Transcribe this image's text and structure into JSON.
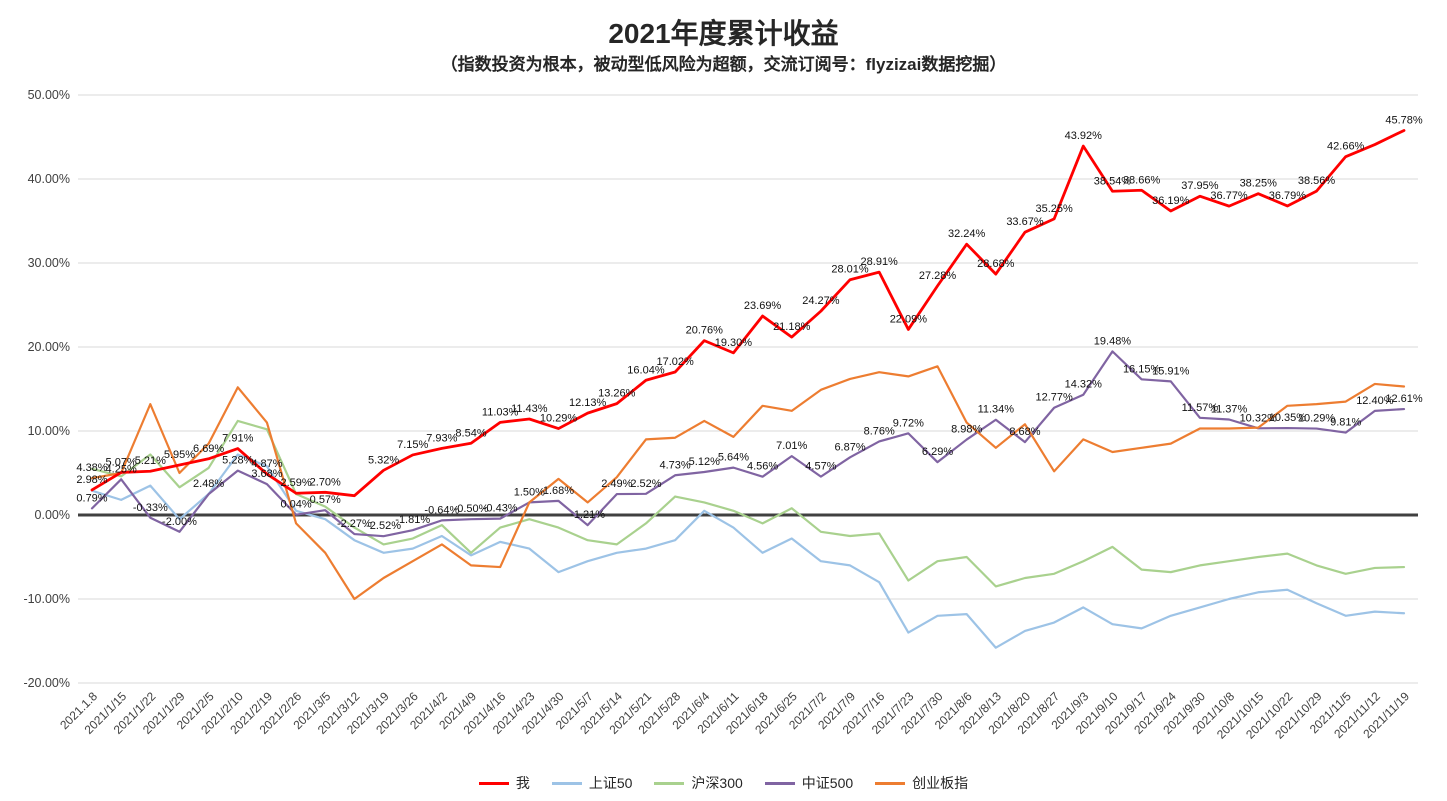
{
  "chart_data": {
    "type": "line",
    "title": "2021年度累计收益",
    "subtitle": "（指数投资为根本，被动型低风险为超额，交流订阅号：flyzizai数据挖掘）",
    "ylim": [
      -20,
      50
    ],
    "grid": true,
    "legend_position": "bottom",
    "grid_color": "#D9D9D9",
    "zero_line_color": "#404040",
    "y_ticks": [
      "50.00%",
      "40.00%",
      "30.00%",
      "20.00%",
      "10.00%",
      "0.00%",
      "-10.00%",
      "-20.00%"
    ],
    "x_labels": [
      "2021.1.8",
      "2021/1/15",
      "2021/1/22",
      "2021/1/29",
      "2021/2/5",
      "2021/2/10",
      "2021/2/19",
      "2021/2/26",
      "2021/3/5",
      "2021/3/12",
      "2021/3/19",
      "2021/3/26",
      "2021/4/2",
      "2021/4/9",
      "2021/4/16",
      "2021/4/23",
      "2021/4/30",
      "2021/5/7",
      "2021/5/14",
      "2021/5/21",
      "2021/5/28",
      "2021/6/4",
      "2021/6/11",
      "2021/6/18",
      "2021/6/25",
      "2021/7/2",
      "2021/7/9",
      "2021/7/16",
      "2021/7/23",
      "2021/7/30",
      "2021/8/6",
      "2021/8/13",
      "2021/8/20",
      "2021/8/27",
      "2021/9/3",
      "2021/9/10",
      "2021/9/17",
      "2021/9/24",
      "2021/9/30",
      "2021/10/8",
      "2021/10/15",
      "2021/10/22",
      "2021/10/29",
      "2021/11/5",
      "2021/11/12",
      "2021/11/19"
    ],
    "series": [
      {
        "name": "我",
        "color": "#FF0000",
        "width": 2.8,
        "values": [
          2.98,
          5.07,
          5.21,
          5.95,
          6.69,
          7.91,
          4.87,
          2.59,
          2.7,
          2.3,
          5.32,
          7.15,
          7.93,
          8.54,
          11.03,
          11.43,
          10.29,
          12.13,
          13.26,
          16.04,
          17.02,
          20.76,
          19.3,
          23.69,
          21.18,
          24.27,
          28.01,
          28.91,
          22.09,
          27.28,
          32.24,
          28.68,
          33.67,
          35.25,
          43.92,
          38.54,
          38.66,
          36.19,
          37.95,
          36.77,
          38.25,
          36.79,
          38.56,
          42.66,
          44.1,
          45.78
        ],
        "labels": [
          "2.98%",
          "5.07%",
          "5.21%",
          "5.95%",
          "6.69%",
          "7.91%",
          "4.87%",
          "2.59%",
          "2.70%",
          "",
          "5.32%",
          "7.15%",
          "7.93%",
          "8.54%",
          "11.03%",
          "11.43%",
          "10.29%",
          "12.13%",
          "13.26%",
          "16.04%",
          "17.02%",
          "20.76%",
          "19.30%",
          "23.69%",
          "21.18%",
          "24.27%",
          "28.01%",
          "28.91%",
          "22.09%",
          "27.28%",
          "32.24%",
          "28.68%",
          "33.67%",
          "35.25%",
          "43.92%",
          "38.54%",
          "38.66%",
          "36.19%",
          "37.95%",
          "36.77%",
          "38.25%",
          "36.79%",
          "38.56%",
          "42.66%",
          "",
          "45.78%"
        ]
      },
      {
        "name": "上证50",
        "color": "#9DC3E6",
        "width": 2.2,
        "values": [
          2.9,
          1.8,
          3.5,
          -0.5,
          2.5,
          7.2,
          5.8,
          0.5,
          -0.5,
          -3.0,
          -4.5,
          -4.0,
          -2.5,
          -4.8,
          -3.2,
          -4.0,
          -6.8,
          -5.5,
          -4.5,
          -4.0,
          -3.0,
          0.5,
          -1.5,
          -4.5,
          -2.8,
          -5.5,
          -6.0,
          -8.0,
          -14.0,
          -12.0,
          -11.8,
          -15.8,
          -13.8,
          -12.8,
          -11.0,
          -13.0,
          -13.5,
          -12.0,
          -11.0,
          -10.0,
          -9.2,
          -8.9,
          -10.5,
          -12.0,
          -11.5,
          -11.7
        ],
        "labels": []
      },
      {
        "name": "沪深300",
        "color": "#A9D18E",
        "width": 2.2,
        "values": [
          5.5,
          4.6,
          7.2,
          3.3,
          5.6,
          11.2,
          10.2,
          2.5,
          1.0,
          -1.5,
          -3.5,
          -2.8,
          -1.2,
          -4.5,
          -1.5,
          -0.5,
          -1.5,
          -3.0,
          -3.5,
          -1.0,
          2.2,
          1.5,
          0.5,
          -1.0,
          0.8,
          -2.0,
          -2.5,
          -2.2,
          -7.8,
          -5.5,
          -5.0,
          -8.5,
          -7.5,
          -7.0,
          -5.5,
          -3.8,
          -6.5,
          -6.8,
          -6.0,
          -5.5,
          -5.0,
          -4.6,
          -6.0,
          -7.0,
          -6.3,
          -6.2
        ],
        "labels": []
      },
      {
        "name": "中证500",
        "color": "#8064A2",
        "width": 2.2,
        "values": [
          0.79,
          4.25,
          -0.33,
          -2.0,
          2.48,
          5.28,
          3.68,
          0.04,
          0.57,
          -2.27,
          -2.52,
          -1.81,
          -0.64,
          -0.5,
          -0.43,
          1.5,
          1.68,
          -1.21,
          2.49,
          2.52,
          4.73,
          5.12,
          5.64,
          4.56,
          7.01,
          4.57,
          6.87,
          8.76,
          9.72,
          6.29,
          8.98,
          11.34,
          8.68,
          12.77,
          14.32,
          19.48,
          16.15,
          15.91,
          11.57,
          11.37,
          10.32,
          10.35,
          10.29,
          9.81,
          12.4,
          12.61
        ],
        "labels": [
          "0.79%",
          "4.25%",
          "-0.33%",
          "-2.00%",
          "2.48%",
          "5.28%",
          "3.68%",
          "0.04%",
          "0.57%",
          "-2.27%",
          "-2.52%",
          "-1.81%",
          "-0.64%",
          "-0.50%",
          "-0.43%",
          "1.50%",
          "1.68%",
          "-1.21%",
          "2.49%",
          "2.52%",
          "4.73%",
          "5.12%",
          "5.64%",
          "4.56%",
          "7.01%",
          "4.57%",
          "6.87%",
          "8.76%",
          "9.72%",
          "6.29%",
          "8.98%",
          "11.34%",
          "8.68%",
          "12.77%",
          "14.32%",
          "19.48%",
          "16.15%",
          "15.91%",
          "11.57%",
          "11.37%",
          "10.32%",
          "10.35%",
          "10.29%",
          "9.81%",
          "12.40%",
          "12.61%"
        ]
      },
      {
        "name": "创业板指",
        "color": "#ED7D31",
        "width": 2.2,
        "values": [
          4.38,
          5.0,
          13.2,
          5.0,
          8.5,
          15.2,
          11.0,
          -1.0,
          -4.5,
          -10.0,
          -7.5,
          -5.5,
          -3.5,
          -6.0,
          -6.2,
          1.5,
          4.3,
          1.5,
          4.5,
          9.0,
          9.2,
          11.2,
          9.3,
          13.0,
          12.4,
          14.9,
          16.2,
          17.0,
          16.5,
          17.7,
          11.0,
          8.0,
          10.8,
          5.2,
          9.0,
          7.5,
          8.0,
          8.5,
          10.3,
          10.3,
          10.4,
          13.0,
          13.2,
          13.5,
          15.6,
          15.3
        ],
        "labels": [
          "4.38%",
          "",
          "",
          "",
          "",
          "",
          "",
          "",
          "",
          "",
          "",
          "",
          "",
          "",
          "",
          "",
          "",
          "",
          "",
          "",
          "",
          "",
          "",
          "",
          "",
          "",
          "",
          "",
          "",
          "",
          "",
          "",
          "",
          "",
          "",
          "",
          "",
          "",
          "",
          "",
          "",
          "",
          "",
          "",
          "",
          ""
        ]
      }
    ]
  }
}
